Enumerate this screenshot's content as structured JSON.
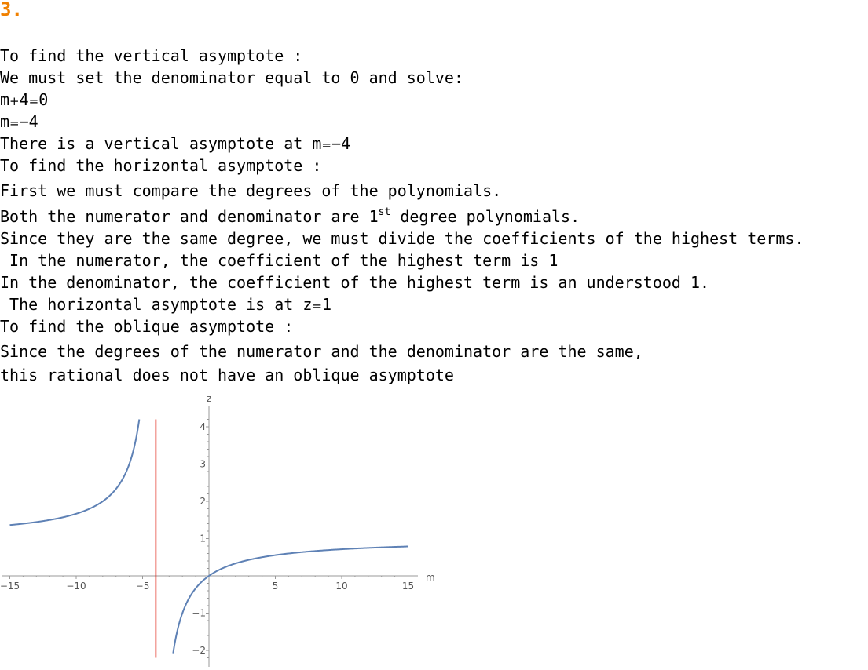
{
  "section_number": "3.",
  "colors": {
    "section_number": "#f08000",
    "text": "#000000",
    "curve": "#5e81b5",
    "asymptote": "#e0190a",
    "axis": "#999999"
  },
  "vertical": {
    "heading": "To find the vertical asymptote :",
    "instruction": "We must set the denominator equal to 0 and solve:",
    "eq1": {
      "lhs_var": "m",
      "op1": "+",
      "lhs_num": "4",
      "op2": "=",
      "rhs": "0"
    },
    "eq2": {
      "lhs_var": "m",
      "op": "=",
      "rhs": "−4"
    },
    "result": {
      "prefix": "There is a vertical asymptote at ",
      "var": "m",
      "op": "=",
      "value": "−4"
    }
  },
  "horizontal": {
    "heading": "To find the horizontal asymptote :",
    "compare": "First we must compare the degrees of the polynomials.",
    "both": {
      "before": "Both the numerator and denominator are 1",
      "sup": "st",
      "after": " degree polynomials."
    },
    "same_degree": "Since they are the same degree, we must divide the coefficients of the highest terms.",
    "numerator": " In the numerator, the coefficient of the highest term is 1",
    "denominator": "In the denominator, the coefficient of the highest term is an understood 1.",
    "result": {
      "prefix": " The horizontal asymptote is at ",
      "var": "z",
      "op": "=",
      "value": "1"
    }
  },
  "oblique": {
    "heading": "To find the oblique asymptote :",
    "line1": "Since the degrees of the numerator and the denominator are the same,",
    "line2": "this rational does not have an oblique asymptote"
  },
  "chart_data": {
    "type": "line",
    "function": "z = m/(m+4)",
    "xlabel": "m",
    "ylabel": "z",
    "xlim": [
      -15,
      15
    ],
    "ylim": [
      -2.2,
      4.2
    ],
    "x_ticks": [
      -15,
      -10,
      -5,
      5,
      10,
      15
    ],
    "x_tick_labels": [
      "−15",
      "−10",
      "−5",
      "5",
      "10",
      "15"
    ],
    "y_ticks": [
      -2,
      -1,
      1,
      2,
      3,
      4
    ],
    "y_tick_labels": [
      "−2",
      "−1",
      "1",
      "2",
      "3",
      "4"
    ],
    "series": [
      {
        "branch": "left",
        "x": [
          -15,
          -14,
          -13,
          -12,
          -11,
          -10,
          -9,
          -8,
          -7,
          -6.5,
          -6,
          -5.75,
          -5.5,
          -5.25
        ],
        "y": [
          1.364,
          1.4,
          1.444,
          1.5,
          1.571,
          1.667,
          1.8,
          2.0,
          2.333,
          2.6,
          3.0,
          3.286,
          3.667,
          4.2
        ]
      },
      {
        "branch": "right",
        "x": [
          -2.7,
          -2.5,
          -2,
          -1.5,
          -1,
          -0.5,
          0,
          1,
          2,
          3,
          5,
          7,
          10,
          12,
          15
        ],
        "y": [
          -2.077,
          -1.667,
          -1.0,
          -0.6,
          -0.333,
          -0.143,
          0,
          0.2,
          0.333,
          0.429,
          0.556,
          0.636,
          0.714,
          0.75,
          0.789
        ]
      }
    ],
    "vertical_asymptote": {
      "x": -4,
      "y_range": [
        -2.2,
        4.2
      ]
    },
    "grid": false
  }
}
